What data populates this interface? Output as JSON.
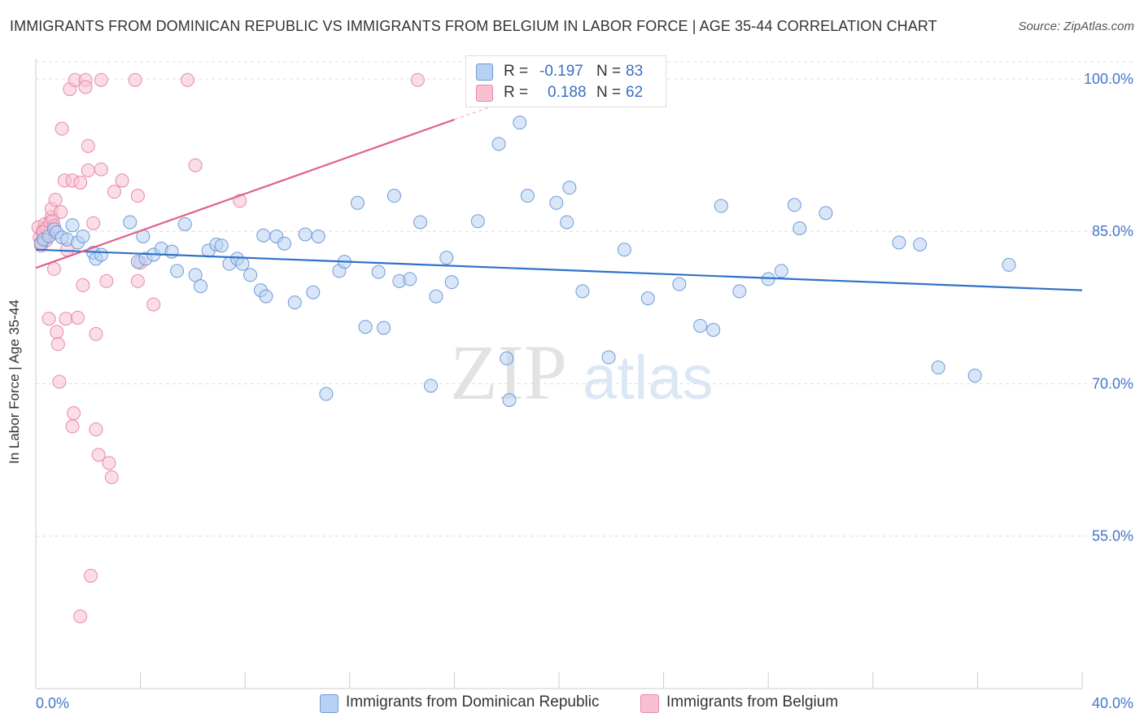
{
  "header": {
    "title": "IMMIGRANTS FROM DOMINICAN REPUBLIC VS IMMIGRANTS FROM BELGIUM IN LABOR FORCE | AGE 35-44 CORRELATION CHART",
    "source": "Source: ZipAtlas.com"
  },
  "watermark": {
    "zip": "ZIP",
    "atlas": "atlas"
  },
  "legend": {
    "r_label": "R =",
    "n_label": "N =",
    "rows": [
      {
        "r": "-0.197",
        "n": "83"
      },
      {
        "r": "0.188",
        "n": "62"
      }
    ]
  },
  "colors": {
    "blue_fill": "#b8d1f3",
    "blue_stroke": "#6f9bd8",
    "blue_line": "#2f72c9",
    "pink_fill": "#f7c1d1",
    "pink_stroke": "#e88aa8",
    "pink_line": "#e0608c",
    "tick_label": "#4477cc",
    "grid": "#dddddd"
  },
  "chart_data": {
    "type": "scatter",
    "title": "IMMIGRANTS FROM DOMINICAN REPUBLIC VS IMMIGRANTS FROM BELGIUM IN LABOR FORCE | AGE 35-44 CORRELATION CHART",
    "xlabel": "",
    "ylabel": "In Labor Force | Age 35-44",
    "xlim": [
      0,
      40
    ],
    "ylim": [
      40,
      102
    ],
    "x_tick_labels": [
      "0.0%",
      "40.0%"
    ],
    "y_ticks": [
      55,
      70,
      85,
      100
    ],
    "y_tick_labels": [
      "55.0%",
      "70.0%",
      "85.0%",
      "100.0%"
    ],
    "grid": true,
    "legend_position": "top-center",
    "series": [
      {
        "name": "Immigrants from Dominican Republic",
        "color": "blue",
        "r": -0.197,
        "n": 83,
        "trend": {
          "x": [
            0,
            40
          ],
          "y": [
            83.2,
            79.2
          ]
        },
        "points": [
          [
            0.2,
            83.8
          ],
          [
            0.3,
            84.2
          ],
          [
            0.5,
            84.5
          ],
          [
            0.7,
            85.2
          ],
          [
            0.8,
            84.9
          ],
          [
            1.0,
            84.4
          ],
          [
            1.2,
            84.2
          ],
          [
            1.4,
            85.6
          ],
          [
            1.6,
            83.9
          ],
          [
            1.8,
            84.5
          ],
          [
            2.2,
            82.9
          ],
          [
            2.3,
            82.3
          ],
          [
            2.5,
            82.7
          ],
          [
            3.6,
            85.9
          ],
          [
            3.9,
            82.0
          ],
          [
            4.1,
            84.5
          ],
          [
            4.2,
            82.3
          ],
          [
            4.5,
            82.7
          ],
          [
            4.8,
            83.3
          ],
          [
            5.2,
            83.0
          ],
          [
            5.4,
            81.1
          ],
          [
            5.7,
            85.7
          ],
          [
            6.1,
            80.7
          ],
          [
            6.3,
            79.6
          ],
          [
            6.6,
            83.1
          ],
          [
            6.9,
            83.7
          ],
          [
            7.1,
            83.6
          ],
          [
            7.4,
            81.8
          ],
          [
            7.7,
            82.3
          ],
          [
            7.9,
            81.8
          ],
          [
            8.2,
            80.7
          ],
          [
            8.6,
            79.2
          ],
          [
            8.8,
            78.6
          ],
          [
            8.7,
            84.6
          ],
          [
            9.2,
            84.5
          ],
          [
            9.9,
            78.0
          ],
          [
            9.5,
            83.8
          ],
          [
            10.3,
            84.7
          ],
          [
            10.8,
            84.5
          ],
          [
            10.6,
            79.0
          ],
          [
            11.1,
            69.0
          ],
          [
            11.6,
            81.1
          ],
          [
            11.8,
            82.0
          ],
          [
            12.3,
            87.8
          ],
          [
            12.6,
            75.6
          ],
          [
            13.1,
            81.0
          ],
          [
            13.3,
            75.5
          ],
          [
            13.7,
            88.5
          ],
          [
            13.9,
            80.1
          ],
          [
            14.3,
            80.3
          ],
          [
            14.7,
            85.9
          ],
          [
            15.1,
            69.8
          ],
          [
            15.3,
            78.6
          ],
          [
            15.7,
            82.4
          ],
          [
            15.9,
            80.0
          ],
          [
            16.9,
            86.0
          ],
          [
            17.7,
            93.6
          ],
          [
            18.0,
            72.5
          ],
          [
            18.5,
            95.7
          ],
          [
            18.1,
            68.4
          ],
          [
            18.8,
            88.5
          ],
          [
            19.9,
            87.8
          ],
          [
            20.3,
            85.9
          ],
          [
            20.9,
            79.1
          ],
          [
            21.9,
            72.6
          ],
          [
            20.4,
            89.3
          ],
          [
            22.5,
            83.2
          ],
          [
            23.4,
            78.4
          ],
          [
            24.6,
            79.8
          ],
          [
            25.4,
            75.7
          ],
          [
            25.9,
            75.3
          ],
          [
            26.2,
            87.5
          ],
          [
            26.9,
            79.1
          ],
          [
            28.0,
            80.3
          ],
          [
            28.5,
            81.1
          ],
          [
            29.2,
            85.3
          ],
          [
            29.0,
            87.6
          ],
          [
            30.2,
            86.8
          ],
          [
            33.0,
            83.9
          ],
          [
            33.8,
            83.7
          ],
          [
            34.5,
            71.6
          ],
          [
            35.9,
            70.8
          ],
          [
            37.2,
            81.7
          ]
        ]
      },
      {
        "name": "Immigrants from Belgium",
        "color": "pink",
        "r": 0.188,
        "n": 62,
        "trend": {
          "x": [
            0,
            16
          ],
          "y": [
            81.4,
            96.0
          ]
        },
        "points": [
          [
            0.1,
            85.4
          ],
          [
            0.15,
            84.4
          ],
          [
            0.2,
            83.9
          ],
          [
            0.25,
            85.0
          ],
          [
            0.3,
            84.2
          ],
          [
            0.35,
            85.7
          ],
          [
            0.4,
            85.3
          ],
          [
            0.45,
            84.6
          ],
          [
            0.5,
            84.8
          ],
          [
            0.55,
            85.9
          ],
          [
            0.6,
            86.4
          ],
          [
            0.65,
            86.1
          ],
          [
            0.7,
            85.5
          ],
          [
            0.2,
            83.6
          ],
          [
            0.3,
            84.9
          ],
          [
            0.4,
            84.1
          ],
          [
            0.5,
            76.4
          ],
          [
            0.6,
            87.2
          ],
          [
            0.7,
            81.3
          ],
          [
            0.75,
            88.1
          ],
          [
            0.8,
            75.1
          ],
          [
            0.85,
            73.9
          ],
          [
            0.9,
            70.2
          ],
          [
            0.95,
            86.9
          ],
          [
            1.0,
            95.1
          ],
          [
            1.1,
            90.0
          ],
          [
            1.15,
            76.4
          ],
          [
            1.2,
            83.2
          ],
          [
            1.3,
            99.0
          ],
          [
            1.4,
            90.0
          ],
          [
            1.45,
            67.1
          ],
          [
            1.4,
            65.8
          ],
          [
            1.5,
            99.9
          ],
          [
            1.6,
            76.5
          ],
          [
            1.7,
            89.8
          ],
          [
            1.8,
            79.7
          ],
          [
            1.9,
            99.9
          ],
          [
            1.9,
            99.2
          ],
          [
            2.0,
            93.4
          ],
          [
            2.0,
            91.0
          ],
          [
            2.2,
            85.8
          ],
          [
            2.3,
            65.5
          ],
          [
            2.3,
            74.9
          ],
          [
            2.4,
            63.0
          ],
          [
            2.5,
            91.1
          ],
          [
            2.5,
            99.9
          ],
          [
            2.7,
            80.1
          ],
          [
            2.8,
            62.2
          ],
          [
            2.9,
            60.8
          ],
          [
            3.3,
            90.0
          ],
          [
            3.0,
            88.9
          ],
          [
            3.8,
            99.9
          ],
          [
            3.9,
            88.5
          ],
          [
            3.9,
            80.1
          ],
          [
            4.0,
            81.9
          ],
          [
            4.5,
            77.8
          ],
          [
            5.8,
            99.9
          ],
          [
            6.1,
            91.5
          ],
          [
            7.8,
            88.0
          ],
          [
            14.6,
            99.9
          ],
          [
            2.1,
            51.1
          ],
          [
            1.7,
            47.1
          ]
        ]
      }
    ]
  },
  "bottom_legend": [
    {
      "label": "Immigrants from Dominican Republic"
    },
    {
      "label": "Immigrants from Belgium"
    }
  ]
}
